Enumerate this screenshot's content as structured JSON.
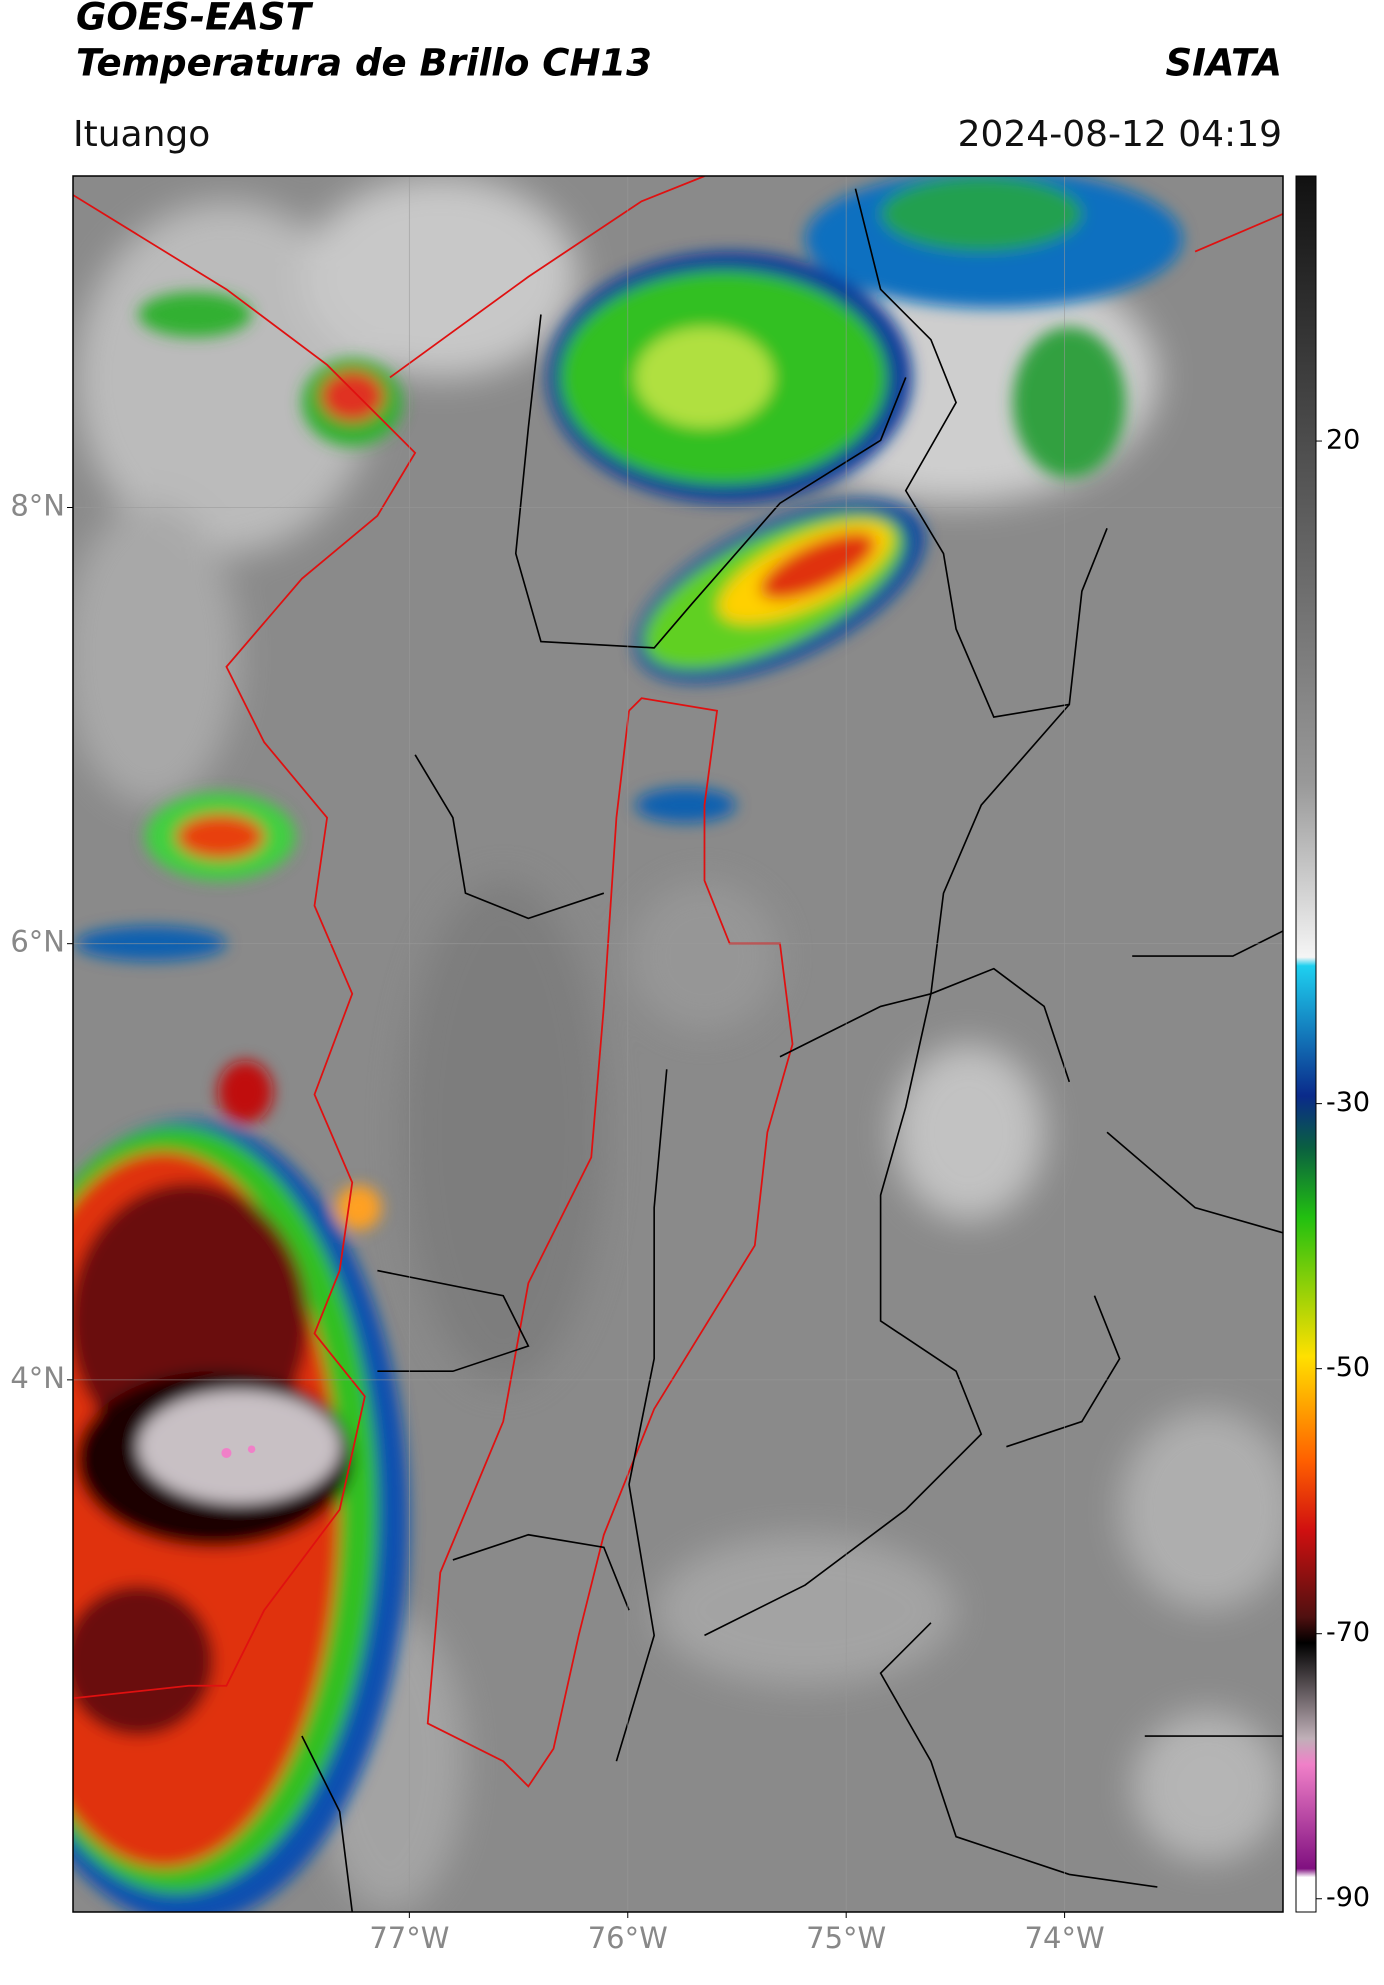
{
  "header": {
    "satellite": "GOES-EAST",
    "product": "Temperatura de Brillo CH13",
    "source": "SIATA",
    "location": "Ituango",
    "timestamp": "2024-08-12 04:19"
  },
  "map": {
    "xlim": [
      -78.54,
      -73.0
    ],
    "ylim": [
      1.56,
      9.52
    ],
    "xticks": [
      {
        "value": -77,
        "label": "77°W"
      },
      {
        "value": -76,
        "label": "76°W"
      },
      {
        "value": -75,
        "label": "75°W"
      },
      {
        "value": -74,
        "label": "74°W"
      }
    ],
    "yticks": [
      {
        "value": 8,
        "label": "8°N"
      },
      {
        "value": 6,
        "label": "6°N"
      },
      {
        "value": 4,
        "label": "4°N"
      }
    ],
    "grid": true
  },
  "colorbar": {
    "clim": [
      -91,
      40
    ],
    "ticks": [
      20,
      -30,
      -50,
      -70,
      -90
    ]
  }
}
